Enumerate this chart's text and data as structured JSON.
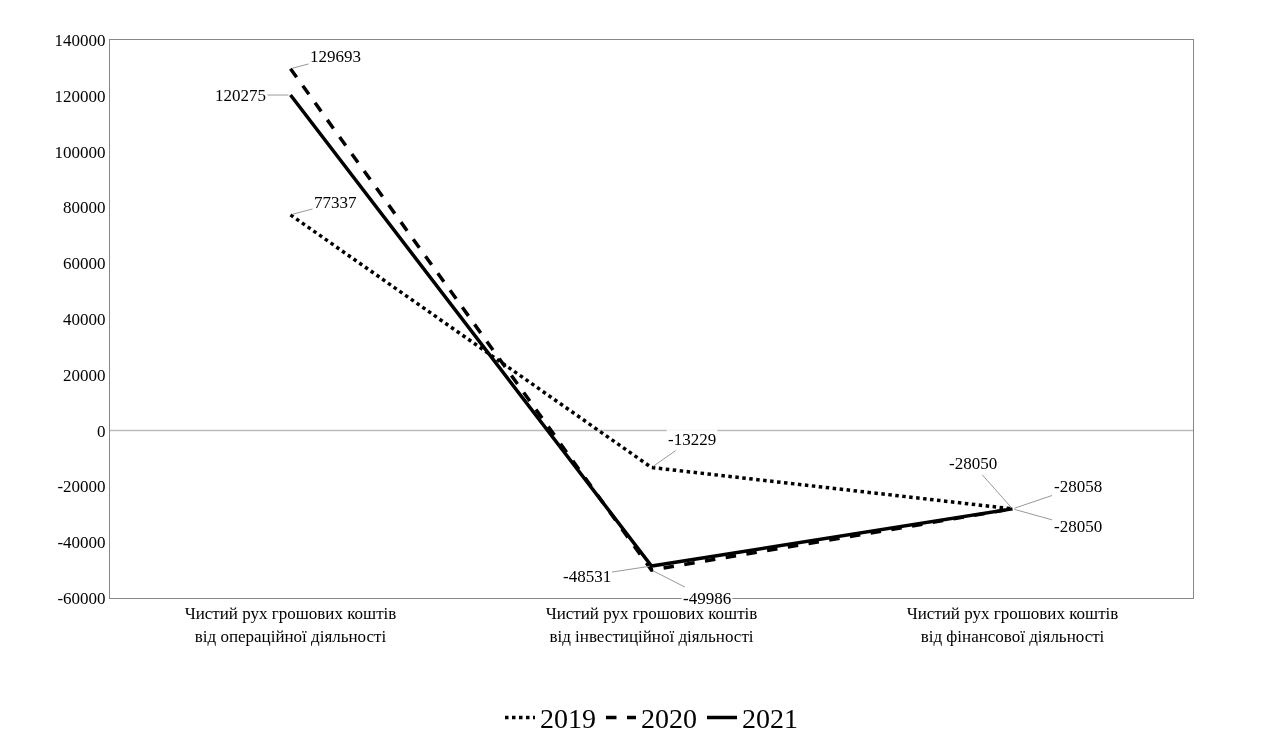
{
  "chart_data": {
    "type": "line",
    "categories": [
      "Чистий рух грошових коштів від операційної діяльності",
      "Чистий рух грошових коштів від інвестиційної діяльності",
      "Чистий рух грошових коштів від фінансової діяльності"
    ],
    "series": [
      {
        "name": "2019",
        "color": "#000000",
        "line_style": "dotted",
        "values": [
          77337,
          -13229,
          -28050
        ]
      },
      {
        "name": "2020",
        "color": "#000000",
        "line_style": "dashed",
        "values": [
          129693,
          -49986,
          -28058
        ]
      },
      {
        "name": "2021",
        "color": "#000000",
        "line_style": "solid",
        "values": [
          120275,
          -48531,
          -28050
        ]
      }
    ],
    "ylim": [
      -60000,
      140000
    ],
    "yticks": [
      -60000,
      -40000,
      -20000,
      0,
      20000,
      40000,
      60000,
      80000,
      100000,
      120000,
      140000
    ],
    "ref_lines": [
      {
        "axis": "y",
        "value": 0,
        "color": "#bbbbbb"
      }
    ],
    "data_labels": true,
    "grid": false,
    "legend": "bottom",
    "marker": "none"
  }
}
